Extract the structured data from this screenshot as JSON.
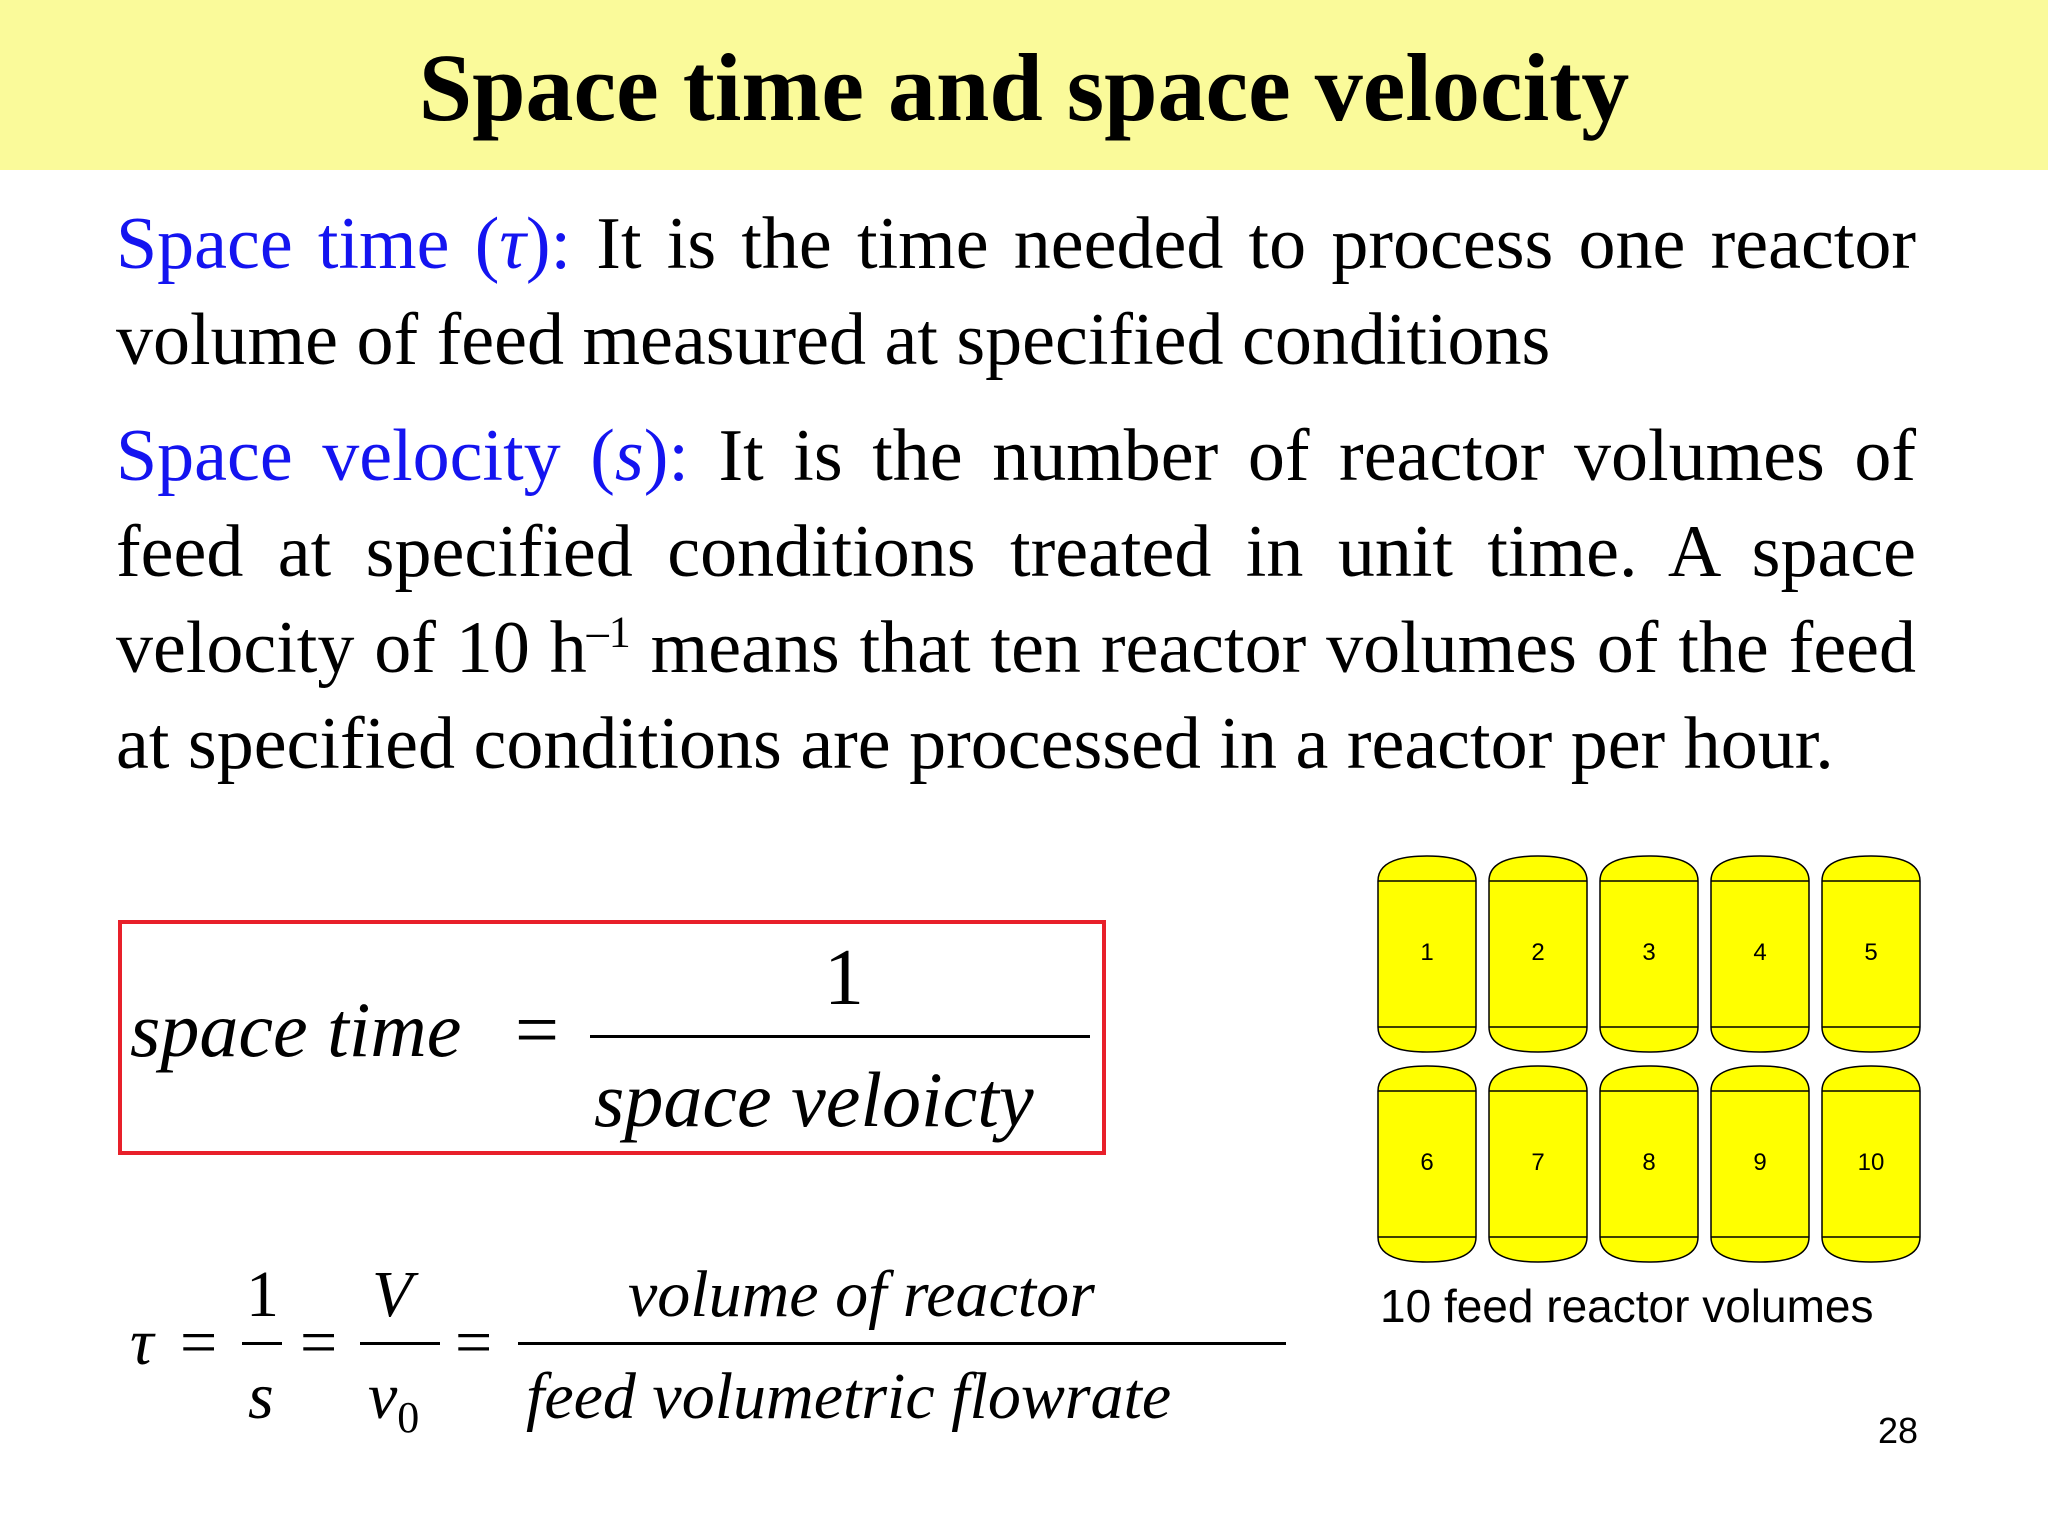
{
  "slide": {
    "title": "Space time and space velocity",
    "page_number": "28"
  },
  "space_time_def": {
    "term": "Space time (",
    "symbol": "τ",
    "term_close": "):",
    "text": " It is the time needed to process one reactor volume of feed measured at specified conditions"
  },
  "space_velocity_def": {
    "term": "Space velocity (",
    "symbol": "s",
    "term_close": "):",
    "text_a": " It is the number of reactor volumes of feed at specified conditions treated in unit time. A space velocity of 10 h",
    "exponent": "–1",
    "text_b": " means that ten reactor volumes of the feed at specified conditions are processed in a reactor per hour."
  },
  "boxed_formula": {
    "lhs": "space time",
    "equals": "=",
    "numerator": "1",
    "denominator": "space veloicty"
  },
  "tau_formula": {
    "tau": "τ",
    "eq": "=",
    "one": "1",
    "s": "s",
    "V": "V",
    "v": "v",
    "v_sub": "0",
    "num": "volume of  reactor",
    "den": "feed volumetric flowrate"
  },
  "figure": {
    "caption": "10 feed reactor volumes",
    "fill_color": "#ffff00",
    "cylinders": [
      "1",
      "2",
      "3",
      "4",
      "5",
      "6",
      "7",
      "8",
      "9",
      "10"
    ]
  },
  "colors": {
    "title_bar": "#fafa9a",
    "term_blue": "#1414f0",
    "box_border": "#e8202a"
  }
}
